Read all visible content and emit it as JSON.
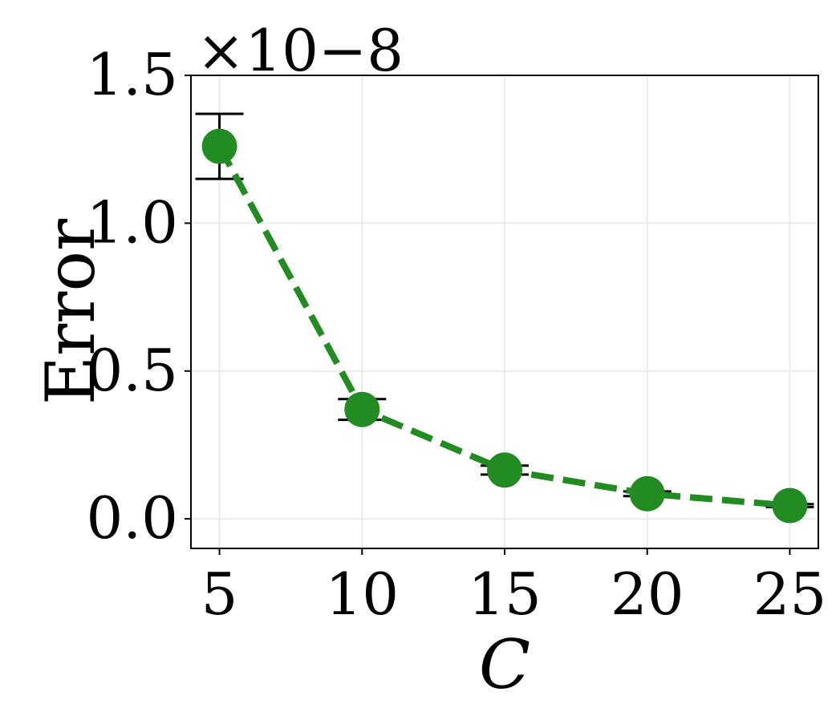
{
  "chart_data": {
    "type": "line",
    "xlabel": "C",
    "ylabel": "Error",
    "scale_note": "×10−8",
    "x": [
      5,
      10,
      15,
      20,
      25
    ],
    "xticks": [
      5,
      10,
      15,
      20,
      25
    ],
    "xtick_labels": [
      "5",
      "10",
      "15",
      "20",
      "25"
    ],
    "yticks": [
      0.0,
      0.5,
      1.0,
      1.5
    ],
    "ytick_labels": [
      "0.0",
      "0.5",
      "1.0",
      "1.5"
    ],
    "xlim": [
      4,
      26
    ],
    "ylim": [
      -0.1,
      1.5
    ],
    "grid": true,
    "series": [
      {
        "values": [
          1.26,
          0.37,
          0.165,
          0.085,
          0.045
        ],
        "error": [
          0.11,
          0.035,
          0.015,
          0.008,
          0.005
        ],
        "color": "#228b22",
        "line_style": "dashed",
        "marker": "circle"
      }
    ]
  }
}
